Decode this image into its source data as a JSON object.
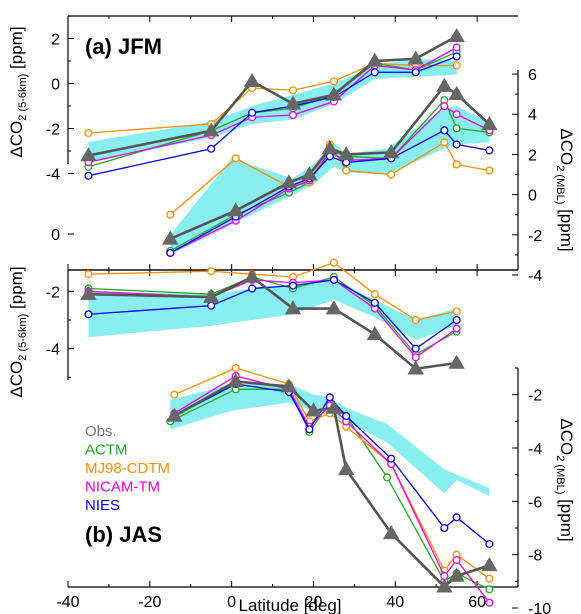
{
  "chart_data": [
    {
      "type": "line",
      "panel_label": "(a) JFM",
      "xlabel": "Latitude [deg]",
      "xlim": [
        -40,
        70
      ],
      "xticks": [
        -40,
        -20,
        0,
        20,
        40,
        60
      ],
      "left_axis": {
        "label": "ΔCO",
        "sub": "2 (5-6km)",
        "unit": " [ppm]",
        "ylim": [
          -5,
          3
        ],
        "ticks": [
          -4,
          -2,
          0,
          2
        ]
      },
      "right_axis": {
        "label": "ΔCO",
        "sub": "2 (MBL)",
        "unit": " [ppm]",
        "ylim": [
          -4,
          6.5
        ],
        "ticks": [
          -4,
          -2,
          0,
          2,
          4,
          6
        ]
      },
      "groups": [
        {
          "axis": "left",
          "band": {
            "x": [
              -35,
              -5,
              5,
              15,
              25,
              35,
              45,
              55
            ],
            "lower": [
              -3.5,
              -2.4,
              -1.8,
              -1.6,
              -0.9,
              0.2,
              0.3,
              0.4
            ],
            "upper": [
              -2.6,
              -1.7,
              -1.0,
              -0.5,
              0.0,
              0.8,
              1.1,
              1.0
            ]
          },
          "series": [
            {
              "name": "Obs.",
              "x": [
                -35,
                -5,
                5,
                15,
                25,
                35,
                45,
                55
              ],
              "values": [
                -3.2,
                -2.1,
                0.1,
                -0.9,
                -0.5,
                1.0,
                1.1,
                2.1
              ]
            },
            {
              "name": "ACTM",
              "x": [
                -35,
                -5,
                5,
                15,
                25,
                35,
                45,
                55
              ],
              "values": [
                -3.7,
                -2.1,
                -1.3,
                -1.1,
                -0.5,
                0.9,
                0.6,
                1.4
              ]
            },
            {
              "name": "MJ98-CDTM",
              "x": [
                -35,
                -5,
                5,
                15,
                25,
                35,
                45,
                55
              ],
              "values": [
                -2.2,
                -1.8,
                -0.2,
                -0.3,
                0.1,
                0.9,
                0.8,
                0.8
              ]
            },
            {
              "name": "NICAM-TM",
              "x": [
                -35,
                -5,
                5,
                15,
                25,
                35,
                45,
                55
              ],
              "values": [
                -3.5,
                -2.3,
                -1.5,
                -1.4,
                -0.8,
                0.8,
                0.6,
                1.6
              ]
            },
            {
              "name": "NIES",
              "x": [
                -35,
                -5,
                5,
                15,
                25,
                35,
                45,
                55
              ],
              "values": [
                -4.1,
                -2.9,
                -1.3,
                -1.0,
                -0.6,
                0.5,
                0.5,
                1.2
              ]
            }
          ]
        },
        {
          "axis": "right",
          "band": {
            "x": [
              -15,
              0,
              15,
              20,
              25,
              28,
              38,
              52,
              55,
              63
            ],
            "lower": [
              -3.0,
              -1.5,
              0.0,
              0.5,
              1.4,
              1.1,
              1.0,
              2.3,
              2.5,
              2.6
            ],
            "upper": [
              -2.0,
              1.8,
              0.8,
              1.5,
              2.6,
              2.0,
              2.3,
              4.3,
              4.4,
              3.6
            ]
          },
          "series": [
            {
              "name": "Obs.",
              "x": [
                -15,
                1,
                14,
                19,
                24,
                28,
                39,
                52,
                55,
                63
              ],
              "values": [
                -2.2,
                -0.8,
                0.6,
                1.0,
                2.3,
                2.0,
                2.1,
                5.4,
                5.0,
                3.5
              ]
            },
            {
              "name": "ACTM",
              "x": [
                -15,
                1,
                14,
                19,
                24,
                28,
                39,
                52,
                55,
                63
              ],
              "values": [
                -2.8,
                -1.0,
                0.1,
                0.6,
                2.2,
                1.9,
                1.8,
                4.7,
                3.3,
                3.1
              ]
            },
            {
              "name": "MJ98-CDTM",
              "x": [
                -15,
                1,
                14,
                19,
                24,
                28,
                39,
                52,
                55,
                63
              ],
              "values": [
                -1.0,
                1.8,
                0.4,
                0.6,
                2.5,
                1.2,
                1.0,
                2.6,
                1.5,
                1.2
              ]
            },
            {
              "name": "NICAM-TM",
              "x": [
                -15,
                1,
                14,
                19,
                24,
                28,
                39,
                52,
                55,
                63
              ],
              "values": [
                -2.9,
                -1.3,
                0.3,
                0.7,
                2.1,
                1.7,
                1.8,
                4.4,
                4.0,
                3.2
              ]
            },
            {
              "name": "NIES",
              "x": [
                -15,
                1,
                14,
                19,
                24,
                28,
                39,
                52,
                55,
                63
              ],
              "values": [
                -2.9,
                -1.1,
                0.4,
                0.8,
                1.9,
                1.6,
                1.8,
                3.2,
                2.5,
                2.2
              ]
            }
          ]
        }
      ]
    },
    {
      "type": "line",
      "panel_label": "(b) JAS",
      "xlabel": "Latitude [deg]",
      "xlim": [
        -40,
        70
      ],
      "xticks": [
        -40,
        -20,
        0,
        20,
        40,
        60
      ],
      "left_axis": {
        "label": "ΔCO",
        "sub": "2 (5-6km)",
        "unit": " [ppm]",
        "ylim": [
          -6,
          0
        ],
        "ticks": [
          -4,
          -2,
          0
        ]
      },
      "right_axis": {
        "label": "ΔCO",
        "sub": "2 (MBL)",
        "unit": " [ppm]",
        "ylim": [
          -10,
          -1
        ],
        "ticks": [
          -10,
          -8,
          -6,
          -4,
          -2
        ]
      },
      "groups": [
        {
          "axis": "left",
          "band": {
            "x": [
              -35,
              -5,
              5,
              15,
              25,
              35,
              45,
              55
            ],
            "lower": [
              -3.6,
              -3.2,
              -3.0,
              -2.8,
              -2.3,
              -2.9,
              -3.7,
              -3.2
            ],
            "upper": [
              -2.0,
              -2.1,
              -1.9,
              -1.8,
              -1.6,
              -2.3,
              -3.0,
              -2.6
            ]
          },
          "series": [
            {
              "name": "Obs.",
              "x": [
                -35,
                -5,
                5,
                15,
                25,
                35,
                45,
                55
              ],
              "values": [
                -2.1,
                -2.2,
                -1.5,
                -2.6,
                -2.6,
                -3.5,
                -4.7,
                -4.5
              ]
            },
            {
              "name": "ACTM",
              "x": [
                -35,
                -5,
                5,
                15,
                25,
                35,
                45,
                55
              ],
              "values": [
                -1.9,
                -2.1,
                -1.5,
                -1.9,
                -1.5,
                -2.5,
                -4.2,
                -3.4
              ]
            },
            {
              "name": "MJ98-CDTM",
              "x": [
                -35,
                -5,
                5,
                15,
                25,
                35,
                45,
                55
              ],
              "values": [
                -1.4,
                -1.3,
                -1.4,
                -1.5,
                -1.0,
                -2.1,
                -3.0,
                -2.7
              ]
            },
            {
              "name": "NICAM-TM",
              "x": [
                -35,
                -5,
                5,
                15,
                25,
                35,
                45,
                55
              ],
              "values": [
                -2.0,
                -2.2,
                -1.6,
                -1.7,
                -1.6,
                -2.6,
                -4.3,
                -3.3
              ]
            },
            {
              "name": "NIES",
              "x": [
                -35,
                -5,
                5,
                15,
                25,
                35,
                45,
                55
              ],
              "values": [
                -2.8,
                -2.5,
                -1.9,
                -1.8,
                -1.6,
                -2.4,
                -4.0,
                -3.0
              ]
            }
          ]
        },
        {
          "axis": "right",
          "band": {
            "x": [
              -15,
              0,
              14,
              20,
              24,
              28,
              38,
              52,
              55,
              63
            ],
            "lower": [
              -3.3,
              -2.6,
              -2.3,
              -2.6,
              -2.8,
              -3.0,
              -3.8,
              -5.7,
              -5.2,
              -5.8
            ],
            "upper": [
              -2.2,
              -1.6,
              -1.6,
              -2.0,
              -2.1,
              -2.5,
              -3.1,
              -4.8,
              -5.0,
              -5.5
            ]
          },
          "series": [
            {
              "name": "Obs.",
              "x": [
                -14,
                1,
                14,
                20,
                25,
                28,
                39,
                52,
                55,
                63
              ],
              "values": [
                -2.8,
                -1.5,
                -1.7,
                -2.6,
                -2.5,
                -4.8,
                -7.2,
                -9.2,
                -8.8,
                -8.4
              ]
            },
            {
              "name": "ACTM",
              "x": [
                -15,
                1,
                14,
                19,
                24,
                28,
                38,
                52,
                55,
                63
              ],
              "values": [
                -3.0,
                -1.8,
                -1.8,
                -3.4,
                -2.3,
                -2.8,
                -5.1,
                -9.0,
                -8.7,
                -9.3
              ]
            },
            {
              "name": "MJ98-CDTM",
              "x": [
                -14,
                1,
                14,
                19,
                24,
                28,
                39,
                52,
                55,
                63
              ],
              "values": [
                -2.0,
                -1.0,
                -1.6,
                -3.0,
                -2.7,
                -3.2,
                -4.6,
                -8.6,
                -8.0,
                -8.9
              ]
            },
            {
              "name": "NICAM-TM",
              "x": [
                -14,
                1,
                14,
                19,
                24,
                28,
                39,
                52,
                55,
                63
              ],
              "values": [
                -2.7,
                -1.3,
                -1.8,
                -3.2,
                -2.4,
                -3.0,
                -4.6,
                -8.8,
                -8.2,
                -9.8
              ]
            },
            {
              "name": "NIES",
              "x": [
                -14,
                1,
                14,
                19,
                24,
                28,
                39,
                52,
                55,
                63
              ],
              "values": [
                -2.8,
                -1.6,
                -1.9,
                -3.3,
                -2.1,
                -2.8,
                -4.4,
                -7.0,
                -6.6,
                -7.6
              ]
            }
          ]
        }
      ]
    }
  ],
  "legend": [
    {
      "name": "Obs.",
      "color": "#777777"
    },
    {
      "name": "ACTM",
      "color": "#22aa22"
    },
    {
      "name": "MJ98-CDTM",
      "color": "#ff8c00"
    },
    {
      "name": "NICAM-TM",
      "color": "#ee00ee"
    },
    {
      "name": "NIES",
      "color": "#0000ee"
    }
  ],
  "style": {
    "band_color": "#88eef0",
    "obs_line_color": "#555555",
    "obs_marker_color": "#666666"
  }
}
